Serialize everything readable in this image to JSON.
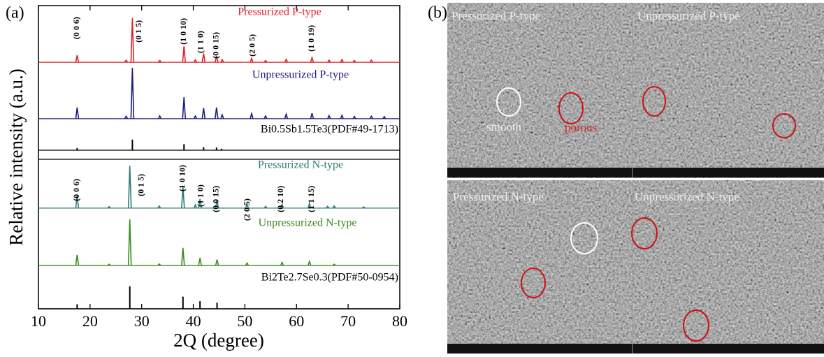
{
  "chart_data": {
    "type": "line",
    "panel_label": "(a)",
    "xlabel": "2Q (degree)",
    "ylabel": "Relative intensity (a.u.)",
    "xlim": [
      10,
      80
    ],
    "xticks": [
      10,
      20,
      30,
      40,
      50,
      60,
      70,
      80
    ],
    "ylim": [
      0,
      100
    ],
    "series": [
      {
        "name": "Pressurized P-type",
        "color": "#e0202a",
        "baseline": 81.3,
        "x": [
          17.5,
          27.0,
          28.2,
          33.5,
          38.2,
          40.4,
          42.0,
          44.5,
          45.6,
          51.3,
          54.0,
          58.0,
          63.0,
          66.3,
          68.8,
          71.2,
          74.5
        ],
        "values": [
          83.6,
          82.0,
          95.9,
          81.9,
          86.6,
          82.1,
          84.2,
          83.4,
          82.2,
          82.6,
          81.9,
          82.3,
          82.8,
          82.0,
          82.2,
          81.9,
          82.0
        ]
      },
      {
        "name": "Unpressurized P-type",
        "color": "#1c1c80",
        "baseline": 62.7,
        "x": [
          17.5,
          27.0,
          28.2,
          33.5,
          38.2,
          40.4,
          42.0,
          44.5,
          45.6,
          51.3,
          54.0,
          58.0,
          63.0,
          66.3,
          68.8,
          71.2,
          74.5,
          77.0
        ],
        "values": [
          66.4,
          63.5,
          79.5,
          63.6,
          69.8,
          63.6,
          66.2,
          66.4,
          64.0,
          64.4,
          63.6,
          64.2,
          64.5,
          63.7,
          63.8,
          63.4,
          63.5,
          63.4
        ]
      },
      {
        "name": "Bi0.5Sb1.5Te3(PDF#49-1713)",
        "color": "#000000",
        "style": "stick",
        "baseline": 52.3,
        "x": [
          17.5,
          28.2,
          38.2,
          42.0,
          44.5,
          45.5
        ],
        "values": [
          53.0,
          55.8,
          54.3,
          53.3,
          53.2,
          52.8
        ]
      },
      {
        "name": "Pressurized N-type",
        "color": "#2e7a78",
        "baseline": 33.2,
        "x": [
          17.5,
          23.7,
          27.7,
          33.4,
          38.0,
          40.4,
          41.3,
          44.6,
          50.4,
          54.0,
          57.2,
          62.5,
          66.0,
          67.3,
          73.0
        ],
        "values": [
          37.6,
          33.7,
          47.2,
          33.9,
          40.2,
          34.3,
          36.2,
          36.0,
          34.5,
          33.8,
          34.5,
          34.7,
          33.8,
          33.9,
          33.6
        ]
      },
      {
        "name": "Unpressurized N-type",
        "color": "#3a8c1e",
        "baseline": 14.3,
        "x": [
          17.5,
          23.7,
          27.7,
          33.4,
          38.0,
          41.3,
          44.6,
          50.4,
          57.2,
          62.5,
          67.3
        ],
        "values": [
          17.8,
          14.7,
          29.5,
          14.8,
          20.1,
          16.8,
          16.2,
          15.1,
          15.3,
          15.6,
          14.7
        ]
      },
      {
        "name": "Bi2Te2.7Se0.3(PDF#50-0954)",
        "color": "#000000",
        "style": "stick",
        "baseline": 0,
        "x": [
          17.5,
          27.7,
          38.0,
          41.3,
          44.6
        ],
        "values": [
          1.5,
          7.4,
          4.0,
          2.5,
          2.0
        ]
      }
    ],
    "annotations": [
      {
        "text": "(0 0 6)",
        "x": 17.5,
        "y": 92.6
      },
      {
        "text": "(0 1 5)",
        "x": 29.5,
        "y": 91.5
      },
      {
        "text": "(1 0 10)",
        "x": 38.2,
        "y": 91.5
      },
      {
        "text": "(1 1 0)",
        "x": 41.5,
        "y": 88.0
      },
      {
        "text": "(0 0 15)",
        "x": 44.5,
        "y": 86.9
      },
      {
        "text": "(2 0 5)",
        "x": 51.5,
        "y": 86.9
      },
      {
        "text": "(1 0 19)",
        "x": 63.0,
        "y": 89.2
      },
      {
        "text": "(0 0 6)",
        "x": 17.5,
        "y": 39.2
      },
      {
        "text": "(0 1 5)",
        "x": 30.0,
        "y": 40.8
      },
      {
        "text": "(1 0 10)",
        "x": 38.0,
        "y": 43.1
      },
      {
        "text": "(1 1 0)",
        "x": 41.5,
        "y": 37.3
      },
      {
        "text": "(0 0 15)",
        "x": 44.5,
        "y": 36.2
      },
      {
        "text": "(2 0 5)",
        "x": 50.5,
        "y": 32.7
      },
      {
        "text": "(0 2 10)",
        "x": 57.0,
        "y": 36.2
      },
      {
        "text": "(1 1 15)",
        "x": 63.0,
        "y": 36.2
      }
    ]
  },
  "images": {
    "panel_label": "(b)",
    "top_left": "Pressurized P-type",
    "top_right": "Unpressurized P-type",
    "note_smooth": "smooth",
    "note_porous": "porous",
    "bottom_left": "Pressurized N-type",
    "bottom_right": "Unpressurized N-type"
  }
}
